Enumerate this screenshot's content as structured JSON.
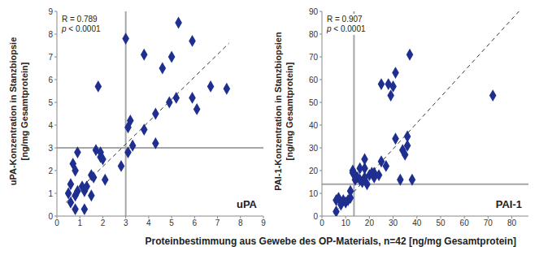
{
  "xlabel": "Proteinbestimmung aus Gewebe des OP-Materials, n=42 [ng/mg Gesamtprotein]",
  "chart_data": [
    {
      "type": "scatter",
      "ylabel": [
        "uPA-Konzentration in Stanzbiopsie",
        "[ng/mg Gesamtprotein]"
      ],
      "panel_label": "uPA",
      "annotations": [
        "R = 0.789",
        "p < 0.0001"
      ],
      "x": [
        0.5,
        0.6,
        0.6,
        0.7,
        0.8,
        0.8,
        0.9,
        0.9,
        1.1,
        1.2,
        1.2,
        1.3,
        1.5,
        1.5,
        1.6,
        1.7,
        1.8,
        1.9,
        1.9,
        2.1,
        2.8,
        3.0,
        3.1,
        3.1,
        3.2,
        3.3,
        3.8,
        3.8,
        4.3,
        4.3,
        4.6,
        4.9,
        5.0,
        5.2,
        5.3,
        5.9,
        5.9,
        6.1,
        6.7,
        7.4,
        0.8,
        2.0
      ],
      "values": [
        1.0,
        1.4,
        0.6,
        2.3,
        0.3,
        2.0,
        1.1,
        2.8,
        1.3,
        1.1,
        0.3,
        1.3,
        0.9,
        1.8,
        1.7,
        2.9,
        5.7,
        2.6,
        2.8,
        1.6,
        2.2,
        7.8,
        2.8,
        3.9,
        4.2,
        3.1,
        3.8,
        7.1,
        3.2,
        4.5,
        6.5,
        5.0,
        7.0,
        5.2,
        8.5,
        5.2,
        7.7,
        4.7,
        5.7,
        5.6,
        0.9,
        2.5
      ],
      "color": "#1f2f8f",
      "marker": "diamond",
      "xlim": [
        0,
        9
      ],
      "xticks": [
        0,
        1,
        2,
        3,
        4,
        5,
        6,
        7,
        8,
        9
      ],
      "ylim": [
        0,
        9
      ],
      "yticks": [
        0,
        1,
        2,
        3,
        4,
        5,
        6,
        7,
        8,
        9
      ],
      "reference_lines": {
        "x": 3,
        "y": 3
      },
      "trend_line": {
        "x": [
          0.4,
          7.5
        ],
        "y": [
          0.6,
          7.6
        ],
        "line_style": "dashed"
      }
    },
    {
      "type": "scatter",
      "ylabel": [
        "PAI-1-Konzentration in Stanzbiopsien",
        "[ng/mg Gesamtprotein]"
      ],
      "panel_label": "PAI-1",
      "annotations": [
        "R = 0.907",
        "p < 0.0001"
      ],
      "x": [
        6,
        6,
        7,
        8,
        9,
        11,
        12,
        12,
        13,
        13,
        14,
        15,
        16,
        17,
        18,
        18,
        18,
        19,
        20,
        21,
        22,
        22,
        24,
        25,
        25,
        27,
        28,
        29,
        30,
        31,
        31,
        33,
        34,
        35,
        36,
        36,
        37,
        38,
        72,
        14,
        16,
        10
      ],
      "values": [
        7,
        2,
        8,
        5,
        7,
        7,
        8,
        11,
        20,
        19,
        16,
        17,
        16,
        15,
        21,
        25,
        17,
        14,
        18,
        19,
        17,
        19,
        18,
        58,
        24,
        22,
        58,
        53,
        57,
        34,
        63,
        16,
        29,
        27,
        35,
        31,
        71,
        16,
        53,
        18,
        21,
        6
      ],
      "color": "#1f2f8f",
      "marker": "diamond",
      "xlim": [
        0,
        87
      ],
      "xticks": [
        0,
        10,
        20,
        30,
        40,
        50,
        60,
        70,
        80
      ],
      "ylim": [
        0,
        90
      ],
      "yticks": [
        0,
        10,
        20,
        30,
        40,
        50,
        60,
        70,
        80,
        90
      ],
      "reference_lines": {
        "x": 13.5,
        "y": 14
      },
      "trend_line": {
        "x": [
          5,
          83
        ],
        "y": [
          1,
          90
        ],
        "line_style": "dashed"
      }
    }
  ]
}
